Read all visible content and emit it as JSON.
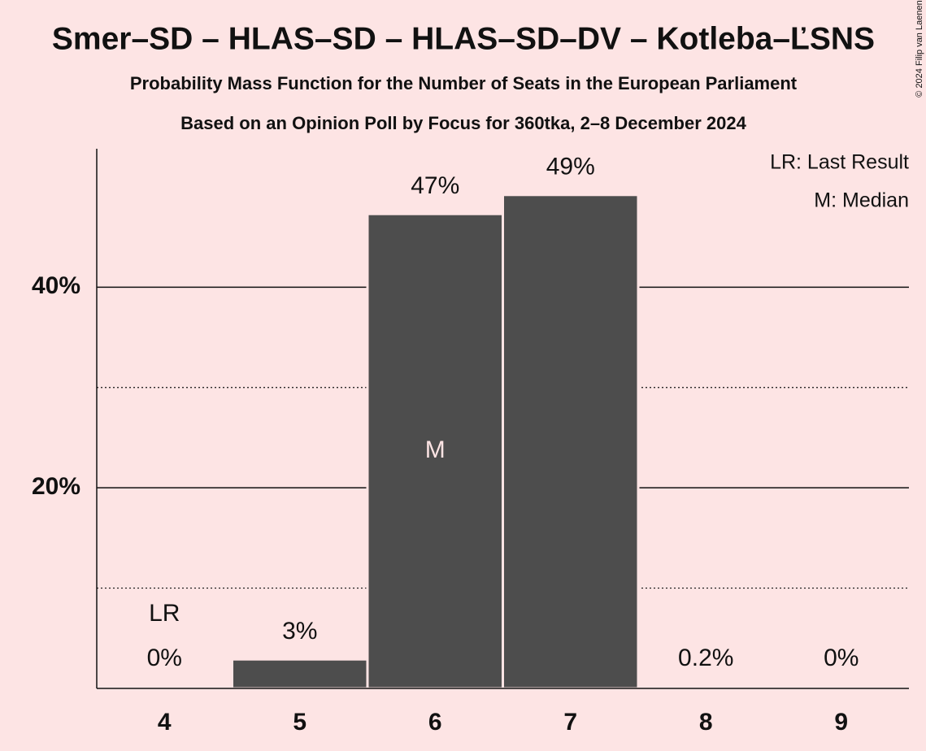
{
  "chart_data": {
    "type": "bar",
    "title": "Smer–SD – HLAS–SD – HLAS–SD–DV – Kotleba–ĽSNS",
    "subtitle": "Probability Mass Function for the Number of Seats in the European Parliament",
    "subtitle2": "Based on an Opinion Poll by Focus for 360tka, 2–8 December 2024",
    "copyright": "© 2024 Filip van Laenen",
    "categories": [
      "4",
      "5",
      "6",
      "7",
      "8",
      "9"
    ],
    "values": [
      0,
      2.9,
      47.3,
      49.2,
      0.2,
      0
    ],
    "value_labels": [
      "0%",
      "3%",
      "47%",
      "49%",
      "0.2%",
      "0%"
    ],
    "color": "#4d4d4d",
    "ylim": [
      0,
      53.8
    ],
    "yticks": [
      {
        "value": 20,
        "label": "20%"
      },
      {
        "value": 40,
        "label": "40%"
      }
    ],
    "minor_yticks": [
      10,
      30
    ],
    "grid": true,
    "last_result_line": 7.5,
    "last_result_line_color": "#e0202a",
    "annotations": [
      {
        "category": "4",
        "text": "LR"
      },
      {
        "category": "6",
        "text": "M"
      }
    ],
    "legend": [
      "LR: Last Result",
      "M: Median"
    ]
  }
}
